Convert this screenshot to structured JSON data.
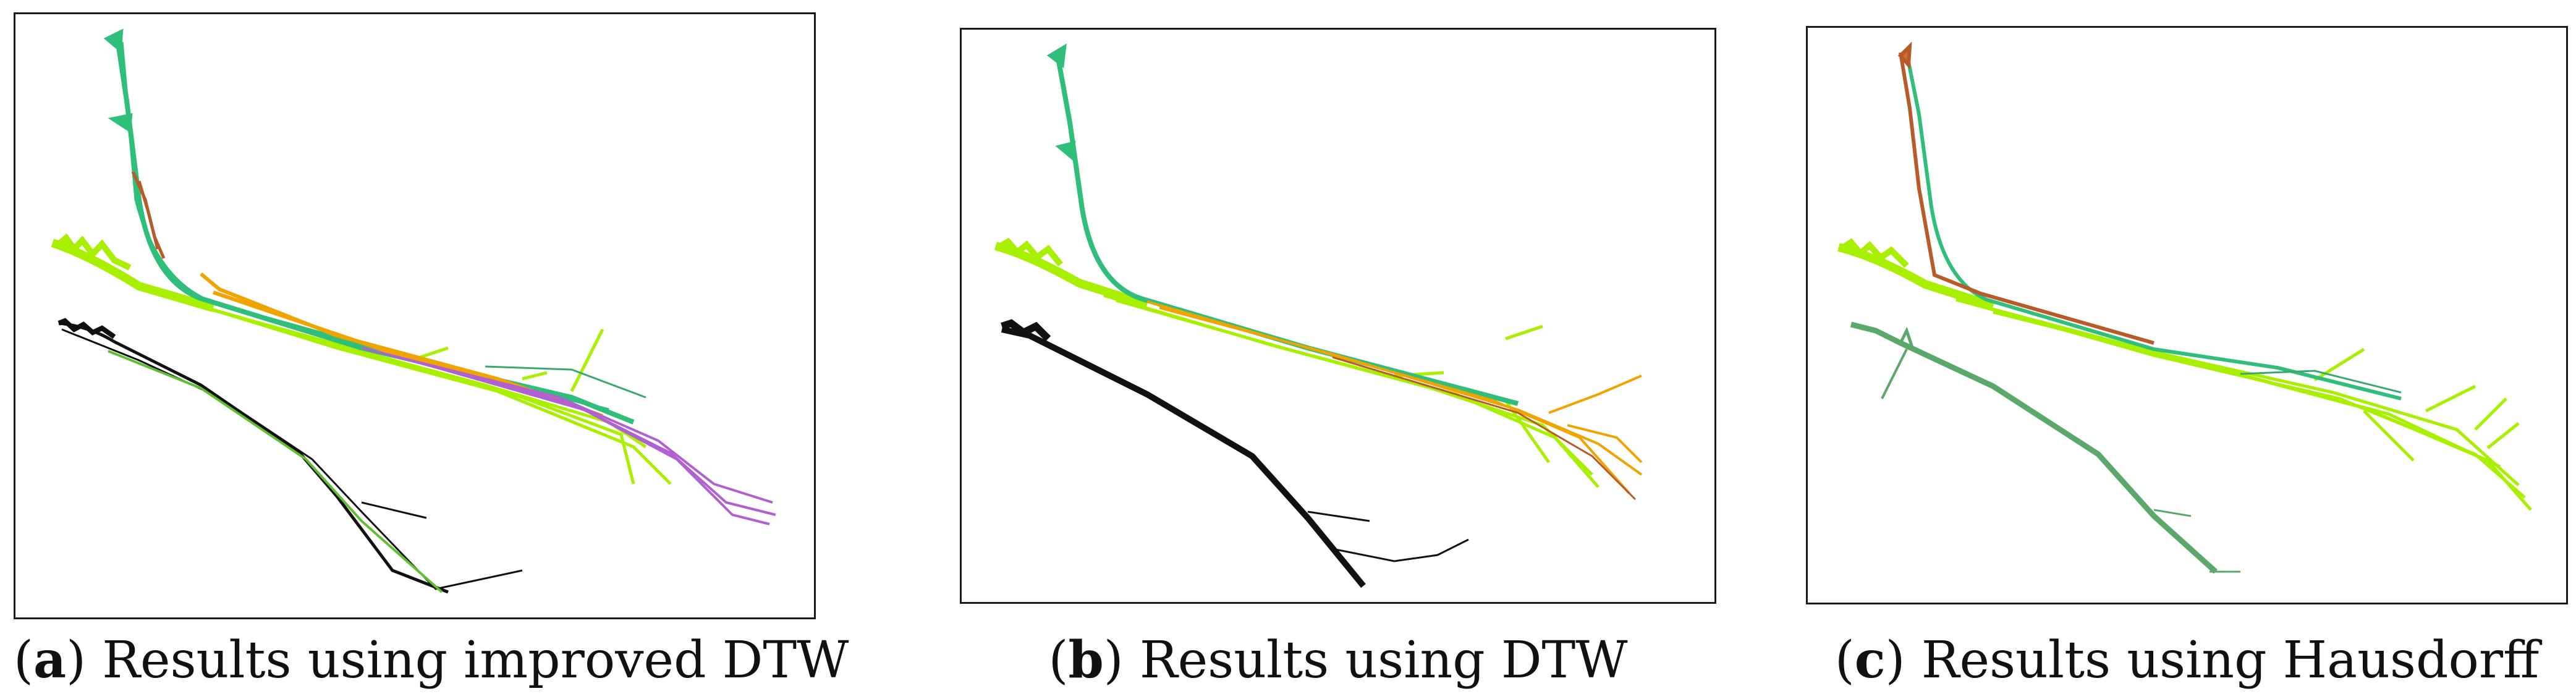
{
  "figure": {
    "panels": [
      {
        "letter": "a",
        "caption_text": " Results using improved DTW"
      },
      {
        "letter": "b",
        "caption_text": " Results using DTW"
      },
      {
        "letter": "c",
        "caption_text": " Results using Hausdorff"
      }
    ]
  },
  "colors": {
    "teal": "#2fbf7a",
    "lime": "#a8f000",
    "light_green": "#9be05a",
    "black": "#111111",
    "orange": "#f0a400",
    "brown": "#b85a2a",
    "purple": "#b060d0",
    "grey_green": "#5aa86a"
  }
}
